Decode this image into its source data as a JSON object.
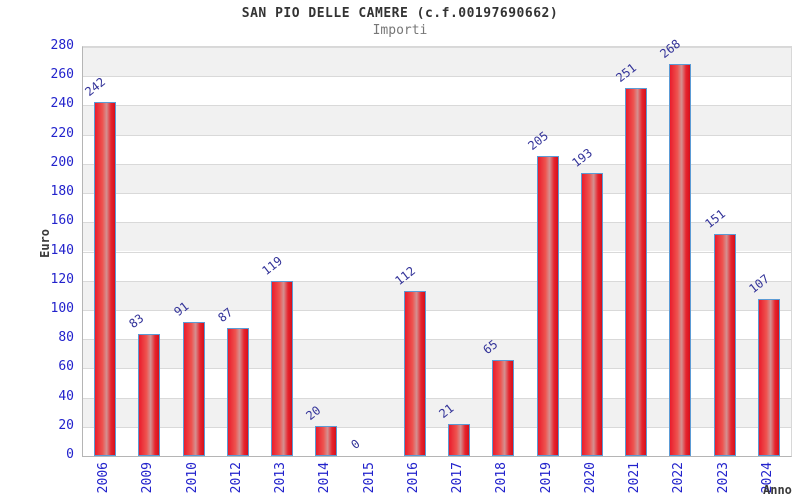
{
  "chart_data": {
    "type": "bar",
    "title": "SAN PIO DELLE CAMERE (c.f.00197690662)",
    "subtitle": "Importi",
    "xlabel": "Anno",
    "ylabel": "Euro",
    "categories": [
      "2006",
      "2009",
      "2010",
      "2012",
      "2013",
      "2014",
      "2015",
      "2016",
      "2017",
      "2018",
      "2019",
      "2020",
      "2021",
      "2022",
      "2023",
      "2024"
    ],
    "values": [
      242,
      83,
      91,
      87,
      119,
      20,
      0,
      112,
      21,
      65,
      205,
      193,
      251,
      268,
      151,
      107
    ],
    "ylim": [
      0,
      280
    ],
    "ytick_step": 20,
    "grid": "horizontal-lines-with-alternating-bands",
    "legend": "none"
  },
  "colors": {
    "bar_fill_main": "#ea1c2c",
    "bar_fill_highlight": "#d49191",
    "bar_border": "#5b9bd5",
    "tick_label": "#2222cc",
    "value_label": "#333399",
    "title_text": "#333333",
    "subtitle_text": "#777777",
    "axis_label_text": "#3a3a3a",
    "band_gray": "#f1f1f1",
    "grid_line": "#d9d9d9",
    "axis_line": "#b5b5b5"
  }
}
